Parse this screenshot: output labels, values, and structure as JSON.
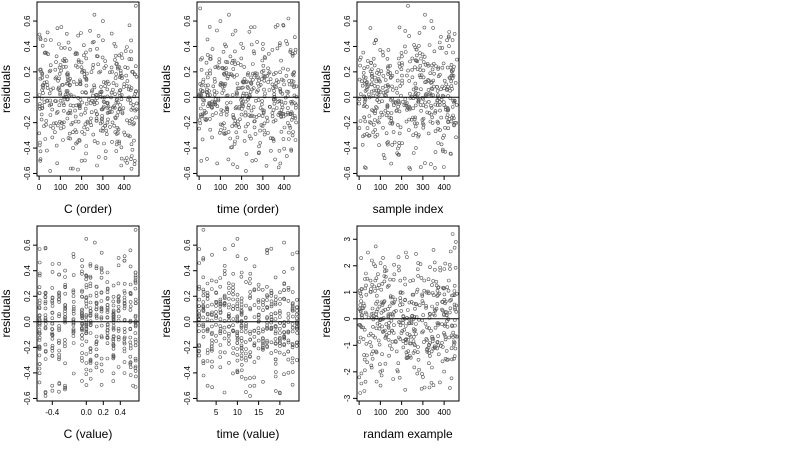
{
  "chart_data": [
    {
      "type": "scatter",
      "xlabel": "C (order)",
      "ylabel": "residuals",
      "xlim": [
        -10,
        470
      ],
      "ylim": [
        -0.62,
        0.75
      ],
      "xticks": [
        0,
        100,
        200,
        300,
        400
      ],
      "xtick_labels": [
        "0",
        "100",
        "200",
        "300",
        "400"
      ],
      "yticks": [
        -0.6,
        -0.4,
        -0.2,
        0.0,
        0.2,
        0.4,
        0.6
      ],
      "ytick_labels": [
        "-0.6",
        "-0.4",
        "-0.2",
        "0.0",
        "0.2",
        "0.4",
        "0.6"
      ],
      "reference_line_y": 0,
      "point_count": 450,
      "sample_points": [
        [
          5,
          -0.5
        ],
        [
          30,
          0.45
        ],
        [
          52,
          -0.58
        ],
        [
          85,
          -0.52
        ],
        [
          130,
          0.5
        ],
        [
          160,
          -0.4
        ],
        [
          200,
          -0.5
        ],
        [
          260,
          0.65
        ],
        [
          300,
          0.6
        ],
        [
          360,
          0.4
        ],
        [
          420,
          -0.3
        ],
        [
          450,
          -0.5
        ],
        [
          455,
          0.72
        ]
      ]
    },
    {
      "type": "scatter",
      "xlabel": "time (order)",
      "ylabel": "residuals",
      "xlim": [
        -10,
        470
      ],
      "ylim": [
        -0.62,
        0.75
      ],
      "xticks": [
        0,
        100,
        200,
        300,
        400
      ],
      "xtick_labels": [
        "0",
        "100",
        "200",
        "300",
        "400"
      ],
      "yticks": [
        -0.6,
        -0.4,
        -0.2,
        0.0,
        0.2,
        0.4,
        0.6
      ],
      "ytick_labels": [
        "-0.6",
        "-0.4",
        "-0.2",
        "0.0",
        "0.2",
        "0.4",
        "0.6"
      ],
      "reference_line_y": 0,
      "point_count": 450,
      "sample_points": [
        [
          5,
          0.7
        ],
        [
          10,
          -0.5
        ],
        [
          100,
          0.6
        ],
        [
          140,
          0.65
        ],
        [
          180,
          -0.55
        ],
        [
          220,
          -0.58
        ],
        [
          250,
          -0.5
        ],
        [
          300,
          0.42
        ],
        [
          420,
          0.62
        ],
        [
          440,
          -0.3
        ]
      ]
    },
    {
      "type": "scatter",
      "xlabel": "sample index",
      "ylabel": "residuals",
      "xlim": [
        -10,
        470
      ],
      "ylim": [
        -0.62,
        0.75
      ],
      "xticks": [
        0,
        100,
        200,
        300,
        400
      ],
      "xtick_labels": [
        "0",
        "100",
        "200",
        "300",
        "400"
      ],
      "yticks": [
        -0.6,
        -0.4,
        -0.2,
        0.0,
        0.2,
        0.4,
        0.6
      ],
      "ytick_labels": [
        "-0.6",
        "-0.4",
        "-0.2",
        "0.0",
        "0.2",
        "0.4",
        "0.6"
      ],
      "reference_line_y": 0,
      "point_count": 450,
      "sample_points": [
        [
          30,
          0.05
        ],
        [
          80,
          0.45
        ],
        [
          120,
          -0.48
        ],
        [
          190,
          0.55
        ],
        [
          230,
          0.72
        ],
        [
          290,
          -0.55
        ],
        [
          310,
          0.65
        ],
        [
          340,
          0.6
        ],
        [
          400,
          -0.3
        ],
        [
          440,
          0.45
        ],
        [
          450,
          -0.2
        ]
      ]
    },
    {
      "type": "scatter",
      "xlabel": "C (value)",
      "ylabel": "residuals",
      "xlim": [
        -0.58,
        0.62
      ],
      "ylim": [
        -0.62,
        0.75
      ],
      "xticks": [
        -0.4,
        0.0,
        0.2,
        0.4
      ],
      "xtick_labels": [
        "-0.4",
        "0.0",
        "0.2",
        "0.4"
      ],
      "yticks": [
        -0.6,
        -0.4,
        -0.2,
        0.0,
        0.2,
        0.4,
        0.6
      ],
      "ytick_labels": [
        "-0.6",
        "-0.4",
        "-0.2",
        "0.0",
        "0.2",
        "0.4",
        "0.6"
      ],
      "reference_line_y": 0,
      "point_count": 450,
      "x_levels": [
        -0.55,
        -0.48,
        -0.4,
        -0.32,
        -0.25,
        -0.15,
        -0.05,
        0.0,
        0.05,
        0.12,
        0.18,
        0.25,
        0.32,
        0.38,
        0.45,
        0.52,
        0.58
      ],
      "sample_points": [
        [
          -0.48,
          0.58
        ],
        [
          -0.48,
          -0.58
        ],
        [
          -0.25,
          -0.5
        ],
        [
          0.0,
          0.65
        ],
        [
          0.1,
          0.62
        ],
        [
          0.38,
          0.5
        ],
        [
          0.55,
          -0.5
        ],
        [
          0.58,
          0.72
        ]
      ]
    },
    {
      "type": "scatter",
      "xlabel": "time (value)",
      "ylabel": "residuals",
      "xlim": [
        0.5,
        24.5
      ],
      "ylim": [
        -0.62,
        0.75
      ],
      "xticks": [
        5,
        10,
        15,
        20
      ],
      "xtick_labels": [
        "5",
        "10",
        "15",
        "20"
      ],
      "yticks": [
        -0.6,
        -0.4,
        -0.2,
        0.0,
        0.2,
        0.4,
        0.6
      ],
      "ytick_labels": [
        "-0.6",
        "-0.4",
        "-0.2",
        "0.0",
        "0.2",
        "0.4",
        "0.6"
      ],
      "reference_line_y": 0,
      "point_count": 450,
      "x_levels": [
        1,
        2,
        3,
        4,
        5,
        6,
        7,
        8,
        9,
        10,
        11,
        12,
        13,
        14,
        15,
        16,
        17,
        18,
        19,
        20,
        21,
        22,
        23,
        24
      ],
      "sample_points": [
        [
          2,
          0.72
        ],
        [
          3,
          -0.5
        ],
        [
          9,
          0.6
        ],
        [
          10,
          0.65
        ],
        [
          12,
          -0.55
        ],
        [
          13,
          -0.58
        ],
        [
          14,
          -0.5
        ],
        [
          21,
          0.62
        ],
        [
          24,
          -0.3
        ]
      ]
    },
    {
      "type": "scatter",
      "xlabel": "randam example",
      "ylabel": "residuals",
      "xlim": [
        -10,
        470
      ],
      "ylim": [
        -3.1,
        3.5
      ],
      "xticks": [
        0,
        100,
        200,
        300,
        400
      ],
      "xtick_labels": [
        "0",
        "100",
        "200",
        "300",
        "400"
      ],
      "yticks": [
        -3,
        -2,
        -1,
        0,
        1,
        2,
        3
      ],
      "ytick_labels": [
        "-3",
        "-2",
        "-1",
        "0",
        "1",
        "2",
        "3"
      ],
      "reference_line_y": 0,
      "point_count": 450,
      "sample_points": [
        [
          5,
          -2.8
        ],
        [
          60,
          2.2
        ],
        [
          100,
          -2.0
        ],
        [
          220,
          2.5
        ],
        [
          300,
          -2.2
        ],
        [
          350,
          2.6
        ],
        [
          380,
          -2.4
        ],
        [
          440,
          3.2
        ],
        [
          455,
          2.9
        ]
      ]
    }
  ],
  "style": {
    "point_color": "#5a5a5a",
    "axis_color": "#000000",
    "background": "#ffffff"
  }
}
